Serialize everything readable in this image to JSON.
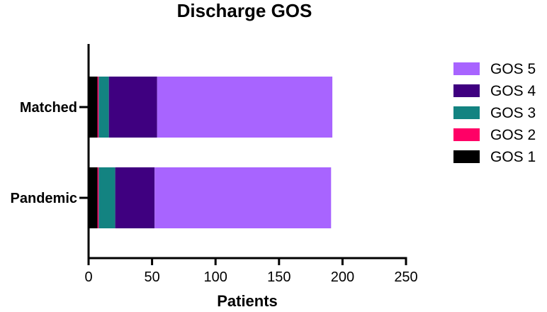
{
  "chart_data": {
    "type": "bar",
    "orientation": "horizontal",
    "stacked": true,
    "title": "Discharge GOS",
    "xlabel": "Patients",
    "ylabel": "",
    "xlim": [
      0,
      250
    ],
    "x_ticks": [
      0,
      50,
      100,
      150,
      200,
      250
    ],
    "categories": [
      "Matched",
      "Pandemic"
    ],
    "series": [
      {
        "name": "GOS 1",
        "color": "#000000",
        "values": [
          7,
          7
        ]
      },
      {
        "name": "GOS 2",
        "color": "#ff0066",
        "values": [
          1,
          1
        ]
      },
      {
        "name": "GOS 3",
        "color": "#138381",
        "values": [
          8,
          13
        ]
      },
      {
        "name": "GOS 4",
        "color": "#3f0080",
        "values": [
          38,
          31
        ]
      },
      {
        "name": "GOS 5",
        "color": "#a864ff",
        "values": [
          138,
          139
        ]
      }
    ],
    "legend_position": "right",
    "legend_order": [
      "GOS 5",
      "GOS 4",
      "GOS 3",
      "GOS 2",
      "GOS 1"
    ],
    "grid": false
  }
}
